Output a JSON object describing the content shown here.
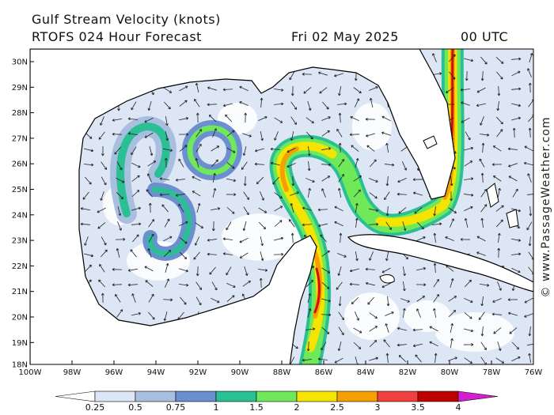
{
  "header": {
    "title": "Gulf Stream Velocity (knots)",
    "subtitle": "RTOFS 024 Hour Forecast",
    "date": "Fri 02 May 2025",
    "time": "00 UTC"
  },
  "map": {
    "lat_labels": [
      "30N",
      "29N",
      "28N",
      "27N",
      "26N",
      "25N",
      "24N",
      "23N",
      "22N",
      "21N",
      "20N",
      "19N",
      "18N"
    ],
    "lon_labels": [
      "100W",
      "98W",
      "96W",
      "94W",
      "92W",
      "90W",
      "88W",
      "86W",
      "84W",
      "82W",
      "80W",
      "78W",
      "76W"
    ]
  },
  "colorbar": {
    "labels": [
      "0.25",
      "0.5",
      "0.75",
      "1",
      "1.5",
      "2",
      "2.5",
      "3",
      "3.5",
      "4"
    ]
  },
  "watermark": "© www.PassageWeather.com"
}
